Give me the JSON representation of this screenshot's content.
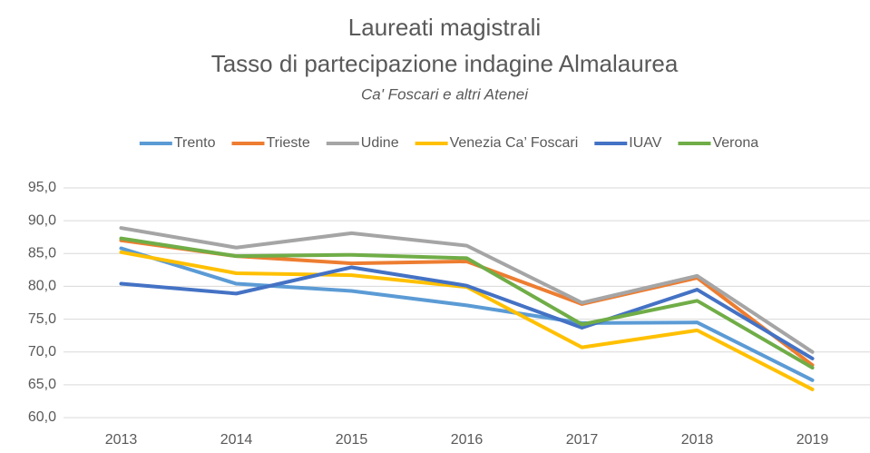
{
  "chart_data": {
    "type": "line",
    "title": "Laureati magistrali",
    "subtitle_line": "Tasso di partecipazione indagine Almalaurea",
    "subtitle": "Ca' Foscari e altri Atenei",
    "categories": [
      "2013",
      "2014",
      "2015",
      "2016",
      "2017",
      "2018",
      "2019"
    ],
    "series": [
      {
        "name": "Trento",
        "color": "#5b9bd5",
        "values": [
          85.8,
          80.4,
          79.3,
          77.1,
          74.4,
          74.5,
          65.7
        ]
      },
      {
        "name": "Trieste",
        "color": "#ed7d31",
        "values": [
          87.0,
          84.6,
          83.5,
          83.8,
          77.3,
          81.3,
          68.0
        ]
      },
      {
        "name": "Udine",
        "color": "#a5a5a5",
        "values": [
          88.9,
          85.9,
          88.1,
          86.2,
          77.5,
          81.6,
          70.0
        ]
      },
      {
        "name": "Venezia Ca’ Foscari",
        "color": "#ffc000",
        "values": [
          85.2,
          82.0,
          81.7,
          79.9,
          70.7,
          73.3,
          64.3
        ]
      },
      {
        "name": "IUAV",
        "color": "#4472c4",
        "values": [
          80.4,
          78.9,
          82.9,
          80.1,
          73.7,
          79.5,
          69.0
        ]
      },
      {
        "name": "Verona",
        "color": "#70ad47",
        "values": [
          87.3,
          84.6,
          84.8,
          84.3,
          74.2,
          77.8,
          67.6
        ]
      }
    ],
    "ylim": [
      60,
      95
    ],
    "yticks": [
      {
        "value": 60,
        "label": "60,0"
      },
      {
        "value": 65,
        "label": "65,0"
      },
      {
        "value": 70,
        "label": "70,0"
      },
      {
        "value": 75,
        "label": "75,0"
      },
      {
        "value": 80,
        "label": "80,0"
      },
      {
        "value": 85,
        "label": "85,0"
      },
      {
        "value": 90,
        "label": "90,0"
      },
      {
        "value": 95,
        "label": "95,0"
      }
    ],
    "grid": true,
    "legend": "top"
  }
}
